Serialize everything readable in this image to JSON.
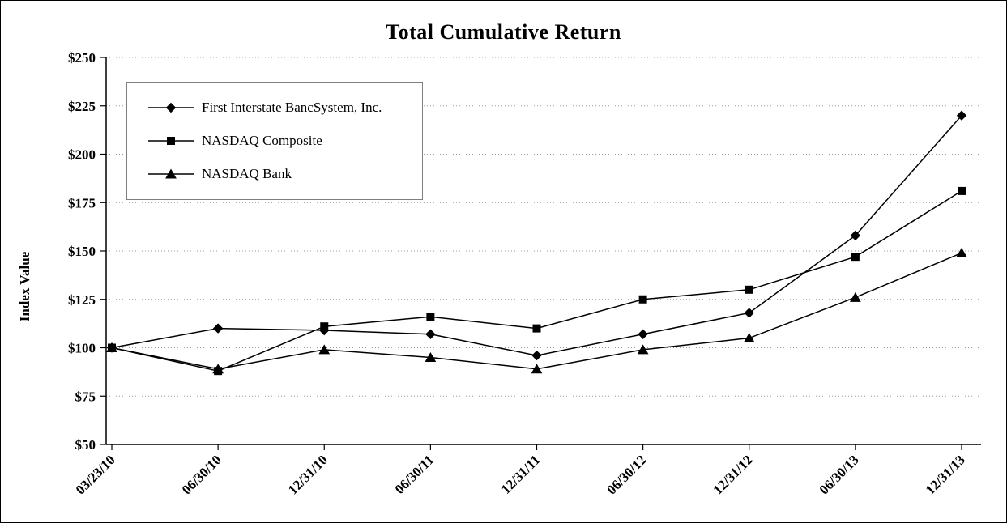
{
  "chart_data": {
    "type": "line",
    "title": "Total Cumulative Return",
    "xlabel": "",
    "ylabel": "Index Value",
    "categories": [
      "03/23/10",
      "06/30/10",
      "12/31/10",
      "06/30/11",
      "12/31/11",
      "06/30/12",
      "12/31/12",
      "06/30/13",
      "12/31/13"
    ],
    "series": [
      {
        "name": "First Interstate BancSystem, Inc.",
        "marker": "diamond",
        "values": [
          100,
          110,
          109,
          107,
          96,
          107,
          118,
          158,
          220
        ]
      },
      {
        "name": "NASDAQ Composite",
        "marker": "square",
        "values": [
          100,
          88,
          111,
          116,
          110,
          125,
          130,
          147,
          181
        ]
      },
      {
        "name": "NASDAQ Bank",
        "marker": "triangle",
        "values": [
          100,
          89,
          99,
          95,
          89,
          99,
          105,
          126,
          149
        ]
      }
    ],
    "ylim": [
      50,
      250
    ],
    "ytick_step": 25,
    "ytick_labels": [
      "$50",
      "$75",
      "$100",
      "$125",
      "$150",
      "$175",
      "$200",
      "$225",
      "$250"
    ],
    "grid": "horizontal-dotted",
    "legend_position": "top-left",
    "colors": {
      "line": "#000000",
      "grid": "#999999",
      "background": "#ffffff",
      "legend_border": "#7f7f7f"
    }
  }
}
